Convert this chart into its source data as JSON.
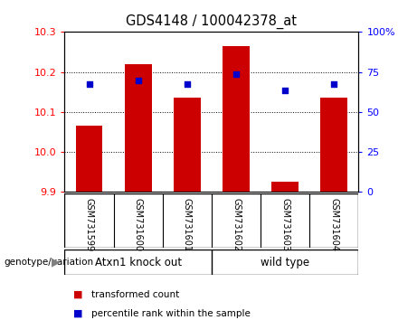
{
  "title": "GDS4148 / 100042378_at",
  "samples": [
    "GSM731599",
    "GSM731600",
    "GSM731601",
    "GSM731602",
    "GSM731603",
    "GSM731604"
  ],
  "red_values": [
    10.065,
    10.22,
    10.135,
    10.265,
    9.925,
    10.135
  ],
  "blue_values_left": [
    10.17,
    10.178,
    10.17,
    10.195,
    10.155,
    10.17
  ],
  "ylim_left": [
    9.9,
    10.3
  ],
  "ylim_right": [
    0,
    100
  ],
  "yticks_left": [
    9.9,
    10.0,
    10.1,
    10.2,
    10.3
  ],
  "yticks_right": [
    0,
    25,
    50,
    75,
    100
  ],
  "group1_label": "Atxn1 knock out",
  "group2_label": "wild type",
  "bar_color": "#cc0000",
  "dot_color": "#0000cc",
  "xlabel_left": "genotype/variation",
  "legend_red": "transformed count",
  "legend_blue": "percentile rank within the sample",
  "base_value": 9.9,
  "bar_width": 0.55,
  "tick_label_area_color": "#c8c8c8",
  "group_area_color": "#90EE90"
}
